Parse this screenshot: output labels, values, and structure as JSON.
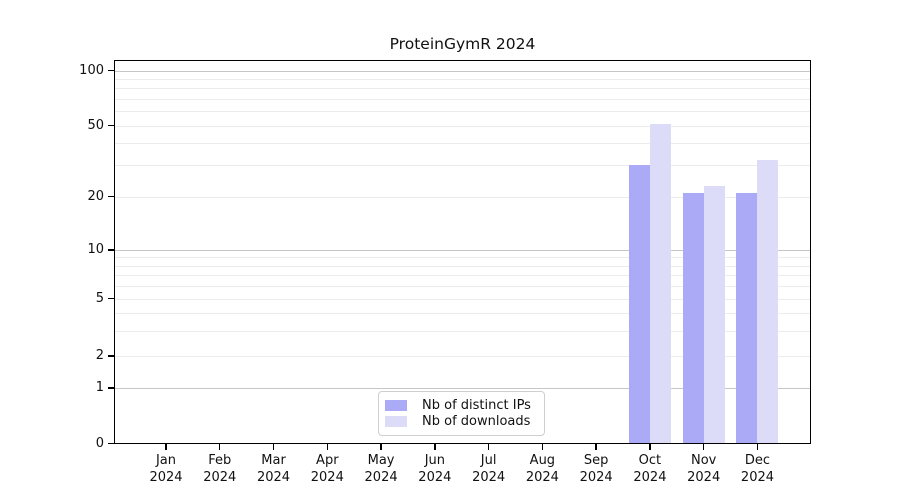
{
  "chart_data": {
    "type": "bar",
    "title": "ProteinGymR 2024",
    "x_axis": {
      "categories": [
        "Jan",
        "Feb",
        "Mar",
        "Apr",
        "May",
        "Jun",
        "Jul",
        "Aug",
        "Sep",
        "Oct",
        "Nov",
        "Dec"
      ],
      "year_line": "2024"
    },
    "series": [
      {
        "name": "Nb of distinct IPs",
        "color": "#aaaaf6",
        "values": [
          0,
          0,
          0,
          0,
          0,
          0,
          0,
          0,
          0,
          30,
          21,
          21
        ]
      },
      {
        "name": "Nb of downloads",
        "color": "#dcdcf8",
        "values": [
          0,
          0,
          0,
          0,
          0,
          0,
          0,
          0,
          0,
          51,
          23,
          32
        ]
      }
    ],
    "y_axis": {
      "scale": "log-like with 0 baseline",
      "labeled_ticks": [
        0,
        1,
        2,
        5,
        10,
        20,
        50,
        100
      ],
      "minor_ticks": [
        3,
        4,
        6,
        7,
        8,
        9,
        30,
        40,
        60,
        70,
        80,
        90
      ],
      "ylim": [
        0,
        115
      ]
    },
    "legend": {
      "position": "lower center"
    },
    "grid": {
      "orientation": "horizontal",
      "major_color": "#c6c6c6",
      "minor_color": "#ececec"
    },
    "colors": {
      "frame": "#000000",
      "background": "#ffffff",
      "text": "#111111"
    }
  }
}
